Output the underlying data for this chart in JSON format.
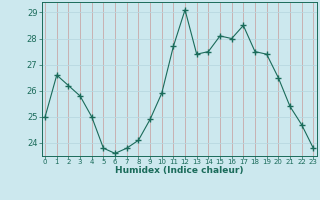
{
  "x": [
    0,
    1,
    2,
    3,
    4,
    5,
    6,
    7,
    8,
    9,
    10,
    11,
    12,
    13,
    14,
    15,
    16,
    17,
    18,
    19,
    20,
    21,
    22,
    23
  ],
  "y": [
    25.0,
    26.6,
    26.2,
    25.8,
    25.0,
    23.8,
    23.6,
    23.8,
    24.1,
    24.9,
    25.9,
    27.7,
    29.1,
    27.4,
    27.5,
    28.1,
    28.0,
    28.5,
    27.5,
    27.4,
    26.5,
    25.4,
    24.7,
    23.8
  ],
  "line_color": "#1a6b5a",
  "marker": "+",
  "marker_size": 4,
  "bg_color": "#cce8ee",
  "hgrid_color": "#b8d8e0",
  "vgrid_color": "#c8a8a8",
  "xlabel": "Humidex (Indice chaleur)",
  "ylim": [
    23.5,
    29.4
  ],
  "yticks": [
    24,
    25,
    26,
    27,
    28,
    29
  ],
  "xticks": [
    0,
    1,
    2,
    3,
    4,
    5,
    6,
    7,
    8,
    9,
    10,
    11,
    12,
    13,
    14,
    15,
    16,
    17,
    18,
    19,
    20,
    21,
    22,
    23
  ],
  "xlim": [
    -0.3,
    23.3
  ]
}
